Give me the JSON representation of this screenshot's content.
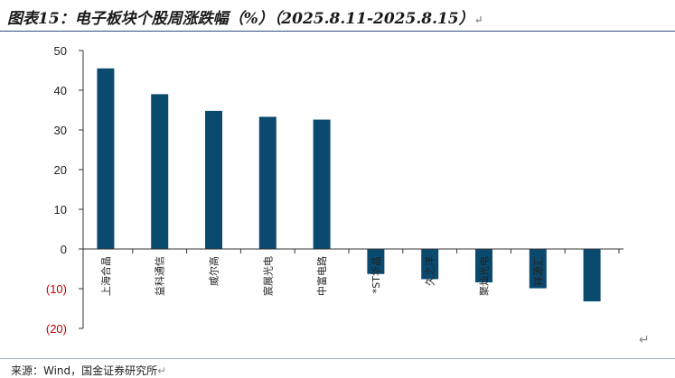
{
  "title": "图表15：电子板块个股周涨跌幅（%）（2025.8.11-2025.8.15）",
  "return_mark": "↵",
  "source": "来源：Wind，国金证券研究所",
  "chart_data": {
    "type": "bar",
    "categories": [
      "上海合晶",
      "益科通信",
      "威尔高",
      "宸展光电",
      "中富电路",
      "*ST华晶",
      "久之洋",
      "聚灿光电",
      "祥源汇",
      ""
    ],
    "values": [
      45.5,
      39.0,
      34.8,
      33.3,
      32.6,
      -6.3,
      -7.6,
      -8.4,
      -9.9,
      -13.2
    ],
    "ylim": [
      -20,
      50
    ],
    "yticks": [
      50,
      40,
      30,
      20,
      10,
      0,
      -10,
      -20
    ],
    "ytick_labels": [
      "50",
      "40",
      "30",
      "20",
      "10",
      "0",
      "(10)",
      "(20)"
    ],
    "title": "",
    "xlabel": "",
    "ylabel": "",
    "grid": false,
    "bar_color": "#0b4a6f",
    "negative_label_color": "#c00000"
  }
}
